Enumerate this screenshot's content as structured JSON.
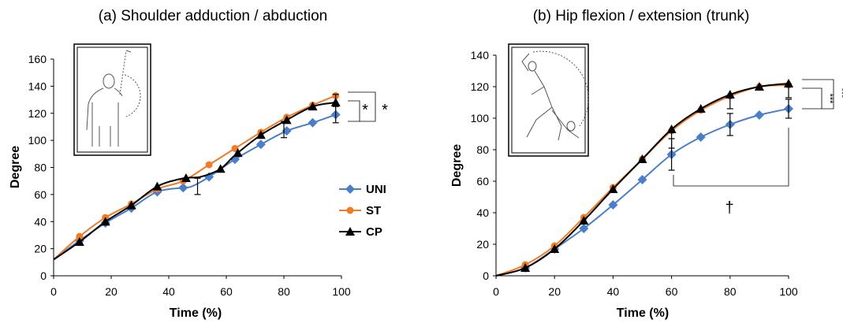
{
  "chart_data": [
    {
      "type": "line",
      "title": "(a) Shoulder adduction / abduction",
      "xlabel": "Time (%)",
      "ylabel": "Degree",
      "xlim": [
        0,
        100
      ],
      "ylim": [
        0,
        160
      ],
      "xticks": [
        "0",
        "20",
        "40",
        "60",
        "80",
        "100"
      ],
      "yticks": [
        "0",
        "20",
        "40",
        "60",
        "80",
        "100",
        "120",
        "140",
        "160"
      ],
      "legend": "right",
      "series": [
        {
          "name": "UNI",
          "color": "#4a7ec9",
          "marker": "diamond",
          "x": [
            0,
            9,
            18,
            27,
            36,
            45,
            48,
            54,
            63,
            72,
            81,
            90,
            98
          ],
          "y": [
            12,
            26,
            39,
            50,
            62,
            65,
            66,
            73,
            86,
            97,
            107,
            113,
            119
          ],
          "marker_x": [
            9,
            18,
            27,
            36,
            45,
            54,
            63,
            72,
            81,
            90,
            98
          ]
        },
        {
          "name": "ST",
          "color": "#f07b29",
          "marker": "circle",
          "x": [
            0,
            9,
            18,
            27,
            36,
            45,
            54,
            63,
            72,
            81,
            90,
            98
          ],
          "y": [
            12,
            29,
            43,
            53,
            64,
            70,
            82,
            94,
            106,
            117,
            126,
            133
          ],
          "marker_x": [
            9,
            18,
            27,
            36,
            45,
            54,
            63,
            72,
            81,
            90,
            98
          ]
        },
        {
          "name": "CP",
          "color": "#000000",
          "marker": "triangle",
          "x": [
            0,
            9,
            18,
            27,
            36,
            45,
            51,
            58,
            63,
            72,
            81,
            90,
            98
          ],
          "y": [
            12,
            25,
            40,
            52,
            66,
            72,
            73,
            79,
            89,
            104,
            115,
            125,
            128
          ],
          "marker_x": [
            9,
            18,
            27,
            36,
            46,
            58,
            64,
            72,
            81,
            90,
            98
          ]
        }
      ],
      "error_bars": [
        {
          "x": 50,
          "y": 66,
          "err": 6
        },
        {
          "x": 80,
          "y": 108,
          "err": 6
        },
        {
          "x": 98,
          "y": 119,
          "err": 6
        },
        {
          "x": 98,
          "y": 130,
          "err": 4
        }
      ],
      "annotations": [
        "*",
        "*"
      ]
    },
    {
      "type": "line",
      "title": "(b) Hip flexion / extension (trunk)",
      "xlabel": "Time (%)",
      "ylabel": "Degree",
      "xlim": [
        0,
        100
      ],
      "ylim": [
        0,
        140
      ],
      "xticks": [
        "0",
        "20",
        "40",
        "60",
        "80",
        "100"
      ],
      "yticks": [
        "0",
        "20",
        "40",
        "60",
        "80",
        "100",
        "120",
        "140"
      ],
      "series": [
        {
          "name": "UNI",
          "color": "#4a7ec9",
          "marker": "diamond",
          "x": [
            0,
            10,
            20,
            30,
            40,
            50,
            60,
            70,
            80,
            90,
            100
          ],
          "y": [
            0,
            5,
            17,
            30,
            45,
            61,
            77,
            88,
            96,
            102,
            106
          ],
          "marker_x": [
            10,
            20,
            30,
            40,
            50,
            60,
            70,
            80,
            90,
            100
          ]
        },
        {
          "name": "ST",
          "color": "#f07b29",
          "marker": "circle",
          "x": [
            0,
            10,
            20,
            30,
            40,
            50,
            60,
            70,
            80,
            90,
            100
          ],
          "y": [
            0,
            7,
            19,
            37,
            56,
            74,
            92,
            105,
            114,
            120,
            121
          ],
          "marker_x": [
            10,
            20,
            30,
            40,
            50,
            60,
            70,
            80,
            90,
            100
          ]
        },
        {
          "name": "CP",
          "color": "#000000",
          "marker": "triangle",
          "x": [
            0,
            10,
            20,
            30,
            40,
            50,
            60,
            70,
            80,
            90,
            100
          ],
          "y": [
            0,
            5,
            17,
            35,
            55,
            74,
            93,
            106,
            115,
            120,
            122
          ],
          "marker_x": [
            10,
            20,
            30,
            40,
            50,
            60,
            70,
            80,
            90,
            100
          ]
        }
      ],
      "error_bars": [
        {
          "x": 60,
          "y": 77,
          "err": 10
        },
        {
          "x": 60,
          "y": 86,
          "err": 5
        },
        {
          "x": 80,
          "y": 96,
          "err": 7
        },
        {
          "x": 80,
          "y": 110,
          "err": 4
        },
        {
          "x": 100,
          "y": 106,
          "err": 6
        },
        {
          "x": 100,
          "y": 117,
          "err": 4
        }
      ],
      "annotations": [
        "***",
        "***",
        "†"
      ]
    }
  ]
}
